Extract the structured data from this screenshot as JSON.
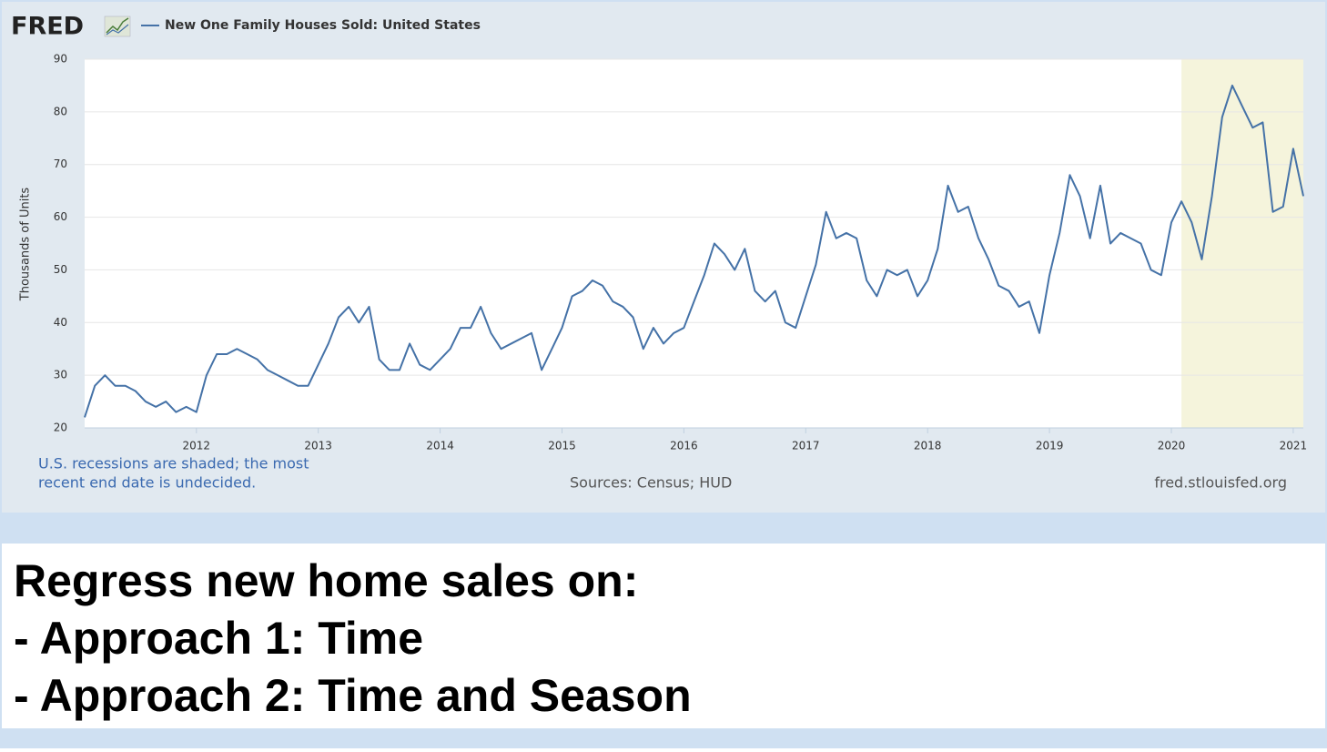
{
  "logo": "FRED",
  "chart_data": {
    "type": "line",
    "x": [
      2011.083,
      2011.167,
      2011.25,
      2011.333,
      2011.417,
      2011.5,
      2011.583,
      2011.667,
      2011.75,
      2011.833,
      2011.917,
      2012,
      2012.083,
      2012.167,
      2012.25,
      2012.333,
      2012.417,
      2012.5,
      2012.583,
      2012.667,
      2012.75,
      2012.833,
      2012.917,
      2013,
      2013.083,
      2013.167,
      2013.25,
      2013.333,
      2013.417,
      2013.5,
      2013.583,
      2013.667,
      2013.75,
      2013.833,
      2013.917,
      2014,
      2014.083,
      2014.167,
      2014.25,
      2014.333,
      2014.417,
      2014.5,
      2014.583,
      2014.667,
      2014.75,
      2014.833,
      2014.917,
      2015,
      2015.083,
      2015.167,
      2015.25,
      2015.333,
      2015.417,
      2015.5,
      2015.583,
      2015.667,
      2015.75,
      2015.833,
      2015.917,
      2016,
      2016.083,
      2016.167,
      2016.25,
      2016.333,
      2016.417,
      2016.5,
      2016.583,
      2016.667,
      2016.75,
      2016.833,
      2016.917,
      2017,
      2017.083,
      2017.167,
      2017.25,
      2017.333,
      2017.417,
      2017.5,
      2017.583,
      2017.667,
      2017.75,
      2017.833,
      2017.917,
      2018,
      2018.083,
      2018.167,
      2018.25,
      2018.333,
      2018.417,
      2018.5,
      2018.583,
      2018.667,
      2018.75,
      2018.833,
      2018.917,
      2019,
      2019.083,
      2019.167,
      2019.25,
      2019.333,
      2019.417,
      2019.5,
      2019.583,
      2019.667,
      2019.75,
      2019.833,
      2019.917,
      2020,
      2020.083,
      2020.167,
      2020.25,
      2020.333,
      2020.417,
      2020.5,
      2020.583,
      2020.667,
      2020.75,
      2020.833,
      2020.917,
      2021,
      2021.083
    ],
    "series": [
      {
        "name": "New One Family Houses Sold: United States",
        "color": "#4572a7",
        "values": [
          22,
          28,
          30,
          28,
          28,
          27,
          25,
          24,
          25,
          23,
          24,
          23,
          30,
          34,
          34,
          35,
          34,
          33,
          31,
          30,
          29,
          28,
          28,
          32,
          36,
          41,
          43,
          40,
          43,
          33,
          31,
          31,
          36,
          32,
          31,
          33,
          35,
          39,
          39,
          43,
          38,
          35,
          36,
          37,
          38,
          31,
          35,
          39,
          45,
          46,
          48,
          47,
          44,
          43,
          41,
          35,
          39,
          36,
          38,
          39,
          44,
          49,
          55,
          53,
          50,
          54,
          46,
          44,
          46,
          40,
          39,
          45,
          51,
          61,
          56,
          57,
          56,
          48,
          45,
          50,
          49,
          50,
          45,
          48,
          54,
          66,
          61,
          62,
          56,
          52,
          47,
          46,
          43,
          44,
          38,
          49,
          57,
          68,
          64,
          56,
          66,
          55,
          57,
          56,
          55,
          50,
          49,
          59,
          63,
          59,
          52,
          64,
          79,
          85,
          81,
          77,
          78,
          61,
          62,
          73,
          64
        ]
      }
    ],
    "y_label": "Thousands of Units",
    "xlim": [
      2011.083,
      2021.083
    ],
    "xticks": [
      2012,
      2013,
      2014,
      2015,
      2016,
      2017,
      2018,
      2019,
      2020,
      2021
    ],
    "ylim": [
      20,
      90
    ],
    "yticks": [
      20,
      30,
      40,
      50,
      60,
      70,
      80,
      90
    ],
    "grid": true,
    "recession_shading": {
      "start": 2020.083,
      "end": 2021.083,
      "color": "#f5f4dc"
    },
    "note_lines": [
      "U.S. recessions are shaded; the most",
      "recent end date is undecided."
    ],
    "source": "Sources: Census; HUD",
    "site": "fred.stlouisfed.org"
  },
  "slide": {
    "lines": [
      "Regress new home sales on:",
      "- Approach 1: Time",
      "- Approach 2: Time and Season"
    ]
  }
}
